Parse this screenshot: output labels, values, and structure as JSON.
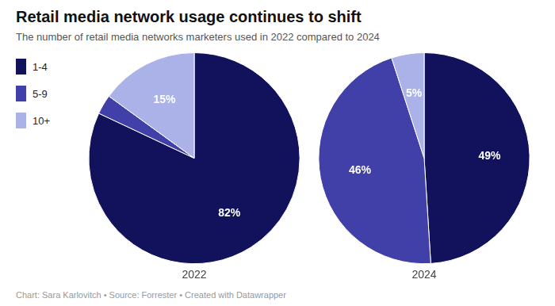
{
  "chart_data": {
    "type": "pie",
    "title": "Retail media network usage continues to shift",
    "subtitle": "The number of retail media networks marketers used in 2022 compared to 2024",
    "categories": [
      "1-4",
      "5-9",
      "10+"
    ],
    "colors": [
      "#12125c",
      "#4040a8",
      "#aab2e8"
    ],
    "series": [
      {
        "name": "2022",
        "values": [
          82,
          3,
          15
        ],
        "value_labels": [
          "82%",
          null,
          "15%"
        ]
      },
      {
        "name": "2024",
        "values": [
          49,
          46,
          5
        ],
        "value_labels": [
          "49%",
          "46%",
          "5%"
        ]
      }
    ],
    "data_labels": true,
    "legend": "left",
    "annotations": [
      "Chart: Sara Karlovitch • Source: Forrester • Created with Datawrapper"
    ]
  }
}
